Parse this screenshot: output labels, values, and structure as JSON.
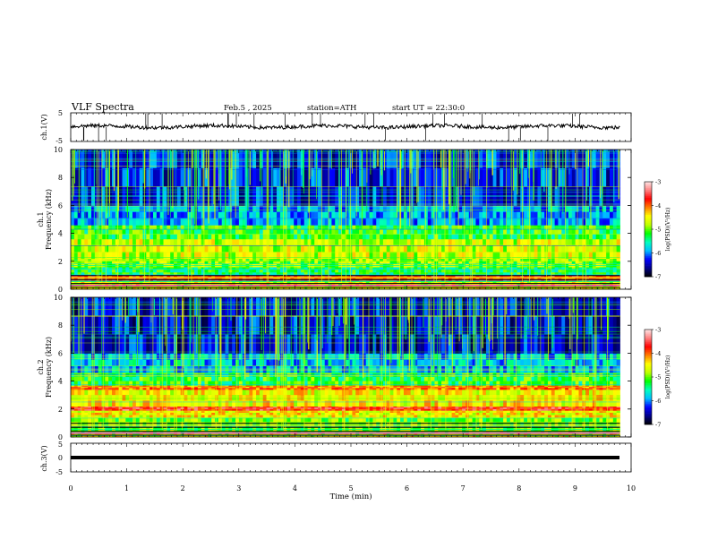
{
  "header": {
    "title": "VLF Spectra",
    "date": "Feb.5 , 2025",
    "station": "station=ATH",
    "start": "start UT = 22:30:0"
  },
  "colors": {
    "background": "#ffffff",
    "frame": "#000000",
    "colormap": [
      "#000000",
      "#00008b",
      "#0000ff",
      "#00bfff",
      "#00ffbf",
      "#00ff00",
      "#bfff00",
      "#ffff00",
      "#ff8000",
      "#ff0000",
      "#ff7f7f",
      "#ffe6e6"
    ]
  },
  "chart_data": [
    {
      "type": "line",
      "panel": "ch1-waveform",
      "ylabel": "ch.1(V)",
      "ylim": [
        -5,
        5
      ],
      "yticks": [
        "5",
        "-5"
      ],
      "xlim": [
        0,
        10
      ],
      "baseline": 0,
      "series": [
        {
          "values_note": "",
          "x_end": 9.8
        }
      ]
    },
    {
      "type": "heatmap",
      "panel": "ch1-spectrogram",
      "ylabel_prefix": "ch.1",
      "ylabel": "Frequency (kHz)",
      "ylim": [
        0,
        10
      ],
      "yticks": [
        "0",
        "2",
        "4",
        "6",
        "8",
        "10"
      ],
      "xlim": [
        0,
        9.8
      ],
      "bands": [
        {
          "f": [
            0,
            0.6
          ],
          "level": -4.6
        },
        {
          "f": [
            0.6,
            1.0
          ],
          "level": -3.8
        },
        {
          "f": [
            1.0,
            1.6
          ],
          "level": -5.3
        },
        {
          "f": [
            1.6,
            2.2
          ],
          "level": -4.9
        },
        {
          "f": [
            2.2,
            3.6
          ],
          "level": -4.7
        },
        {
          "f": [
            3.6,
            4.6
          ],
          "level": -5.2
        },
        {
          "f": [
            4.6,
            6.0
          ],
          "level": -5.9
        },
        {
          "f": [
            6.0,
            10.0
          ],
          "level": -6.3
        }
      ],
      "colorbar": {
        "label": "log(PSD)(V²/Hz)",
        "range": [
          -7,
          -3
        ],
        "ticks": [
          "-3",
          "-4",
          "-5",
          "-6",
          "-7"
        ]
      }
    },
    {
      "type": "heatmap",
      "panel": "ch2-spectrogram",
      "ylabel_prefix": "ch.2",
      "ylabel": "Frequency (kHz)",
      "ylim": [
        0,
        10
      ],
      "yticks": [
        "0",
        "2",
        "4",
        "6",
        "8",
        "10"
      ],
      "xlim": [
        0,
        9.8
      ],
      "bands": [
        {
          "f": [
            0,
            0.4
          ],
          "level": -4.6
        },
        {
          "f": [
            0.4,
            1.4
          ],
          "level": -5.0
        },
        {
          "f": [
            1.4,
            1.9
          ],
          "level": -4.5
        },
        {
          "f": [
            1.9,
            2.2
          ],
          "level": -3.7
        },
        {
          "f": [
            2.2,
            3.4
          ],
          "level": -4.5
        },
        {
          "f": [
            3.4,
            3.7
          ],
          "level": -4.0
        },
        {
          "f": [
            3.7,
            4.6
          ],
          "level": -5.2
        },
        {
          "f": [
            4.6,
            6.0
          ],
          "level": -5.8
        },
        {
          "f": [
            6.0,
            10.0
          ],
          "level": -6.4
        }
      ],
      "colorbar": {
        "label": "log(PSD)(V²/Hz)",
        "range": [
          -7,
          -3
        ],
        "ticks": [
          "-3",
          "-4",
          "-5",
          "-6",
          "-7"
        ]
      }
    },
    {
      "type": "line",
      "panel": "ch3-waveform",
      "ylabel": "ch.3(V)",
      "ylim": [
        -5,
        5
      ],
      "yticks": [
        "5",
        "0",
        "-5"
      ],
      "xlim": [
        0,
        10
      ],
      "baseline": -1.5,
      "series": [
        {
          "values_note": "",
          "x_end": 9.8
        }
      ]
    }
  ],
  "xaxis": {
    "label": "Time (min)",
    "ticks": [
      "0",
      "1",
      "2",
      "3",
      "4",
      "5",
      "6",
      "7",
      "8",
      "9",
      "10"
    ]
  }
}
